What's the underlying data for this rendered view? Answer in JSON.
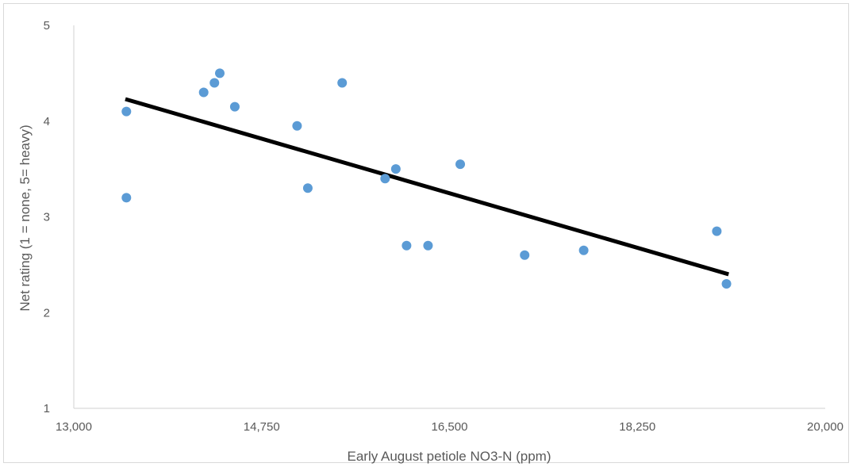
{
  "chart_data": {
    "type": "scatter",
    "title": "",
    "xlabel": "Early August petiole NO3-N (ppm)",
    "ylabel": "Net rating (1 = none, 5= heavy)",
    "xlim": [
      13000,
      20000
    ],
    "ylim": [
      1,
      5
    ],
    "x_ticks": [
      13000,
      14750,
      16500,
      18250,
      20000
    ],
    "x_tick_labels": [
      "13,000",
      "14,750",
      "16,500",
      "18,250",
      "20,000"
    ],
    "y_ticks": [
      1,
      2,
      3,
      4,
      5
    ],
    "y_tick_labels": [
      "1",
      "2",
      "3",
      "4",
      "5"
    ],
    "grid": false,
    "legend": "none",
    "colors": {
      "points": "#5b9bd5",
      "trendline": "#000000",
      "axis": "#d9d9d9",
      "text": "#595959"
    },
    "series": [
      {
        "x": [
          13490,
          13490,
          14210,
          14310,
          14360,
          14500,
          15080,
          15180,
          15500,
          15900,
          16000,
          16100,
          16300,
          16600,
          17200,
          17750,
          18990,
          19080
        ],
        "y": [
          4.1,
          3.2,
          4.3,
          4.4,
          4.5,
          4.15,
          3.95,
          3.3,
          4.4,
          3.4,
          3.5,
          2.7,
          2.7,
          3.55,
          2.6,
          2.65,
          2.85,
          2.3
        ]
      }
    ],
    "trendline": {
      "type": "linear",
      "x": [
        13480,
        19100
      ],
      "y": [
        4.23,
        2.4
      ]
    }
  }
}
